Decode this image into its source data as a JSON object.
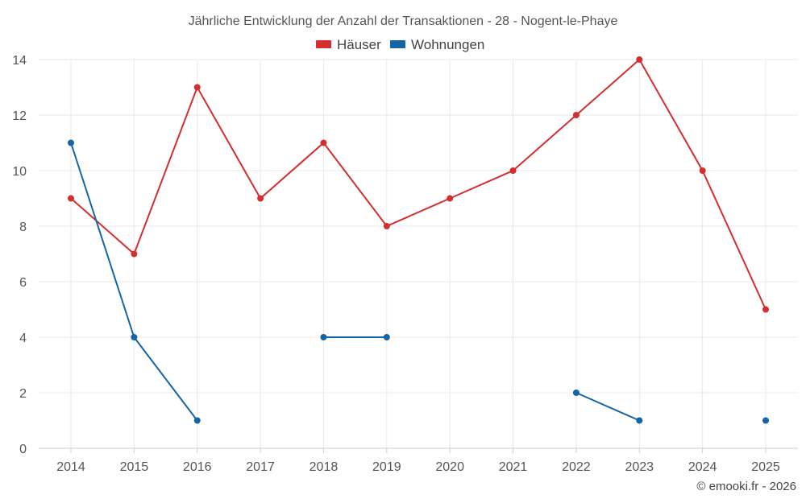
{
  "chart_data": {
    "type": "line",
    "title": "Jährliche Entwicklung der Anzahl der Transaktionen - 28 - Nogent-le-Phaye",
    "categories": [
      "2014",
      "2015",
      "2016",
      "2017",
      "2018",
      "2019",
      "2020",
      "2021",
      "2022",
      "2023",
      "2024",
      "2025"
    ],
    "series": [
      {
        "name": "Häuser",
        "color": "#d32f2f",
        "values": [
          9,
          7,
          13,
          9,
          11,
          8,
          9,
          10,
          12,
          14,
          10,
          5
        ]
      },
      {
        "name": "Wohnungen",
        "color": "#1565a6",
        "values": [
          11,
          4,
          1,
          null,
          4,
          4,
          null,
          null,
          2,
          1,
          null,
          1
        ]
      }
    ],
    "ylim": [
      0,
      14
    ],
    "yticks": [
      "0",
      "2",
      "4",
      "6",
      "8",
      "10",
      "12",
      "14"
    ],
    "grid": true,
    "legend_position": "top-center",
    "xlabel": "",
    "ylabel": ""
  },
  "credit": "© emooki.fr - 2026"
}
